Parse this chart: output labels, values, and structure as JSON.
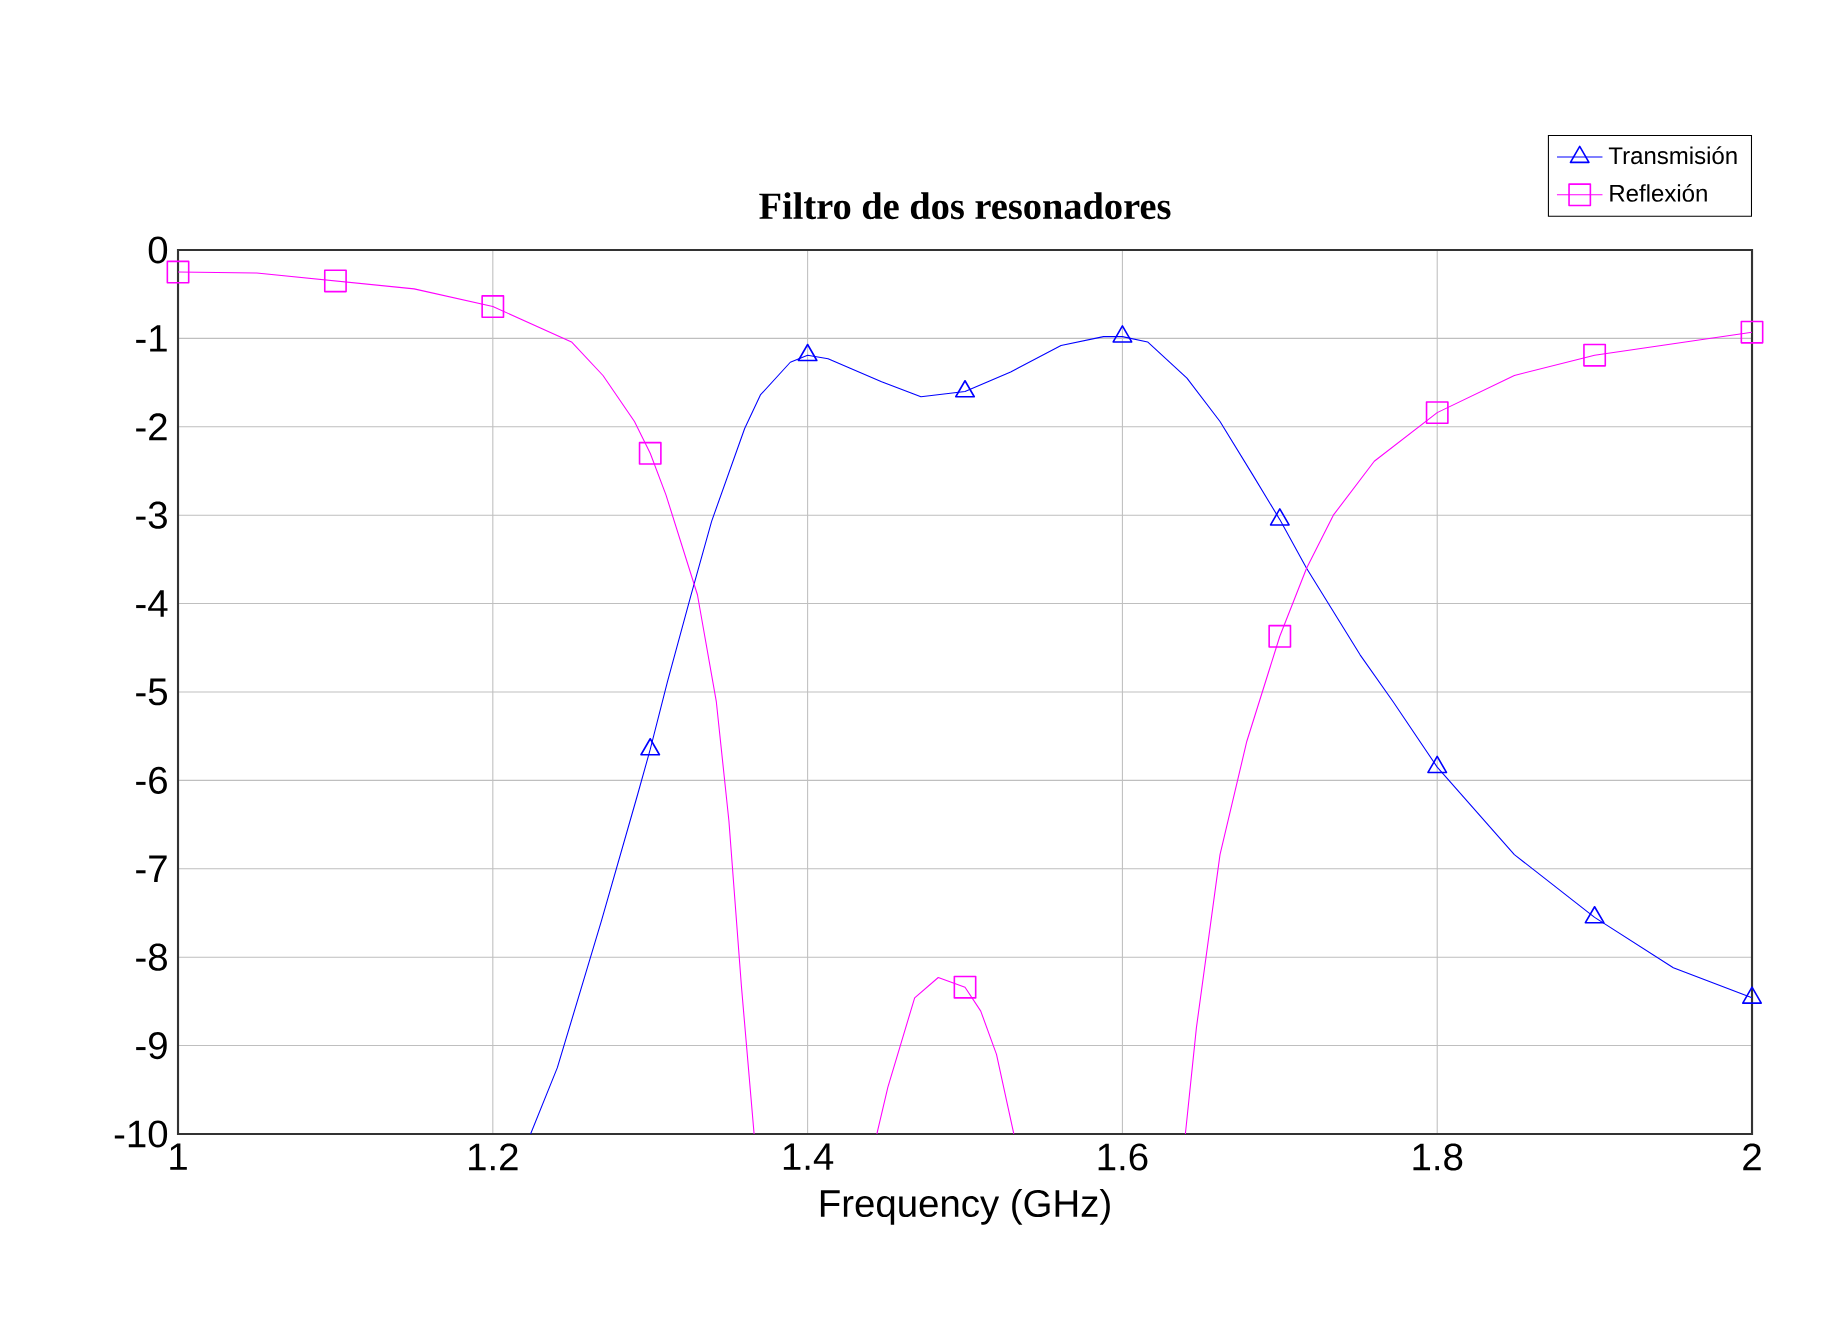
{
  "chart_data": {
    "type": "line",
    "title": "Filtro de dos resonadores",
    "xlabel": "Frequency (GHz)",
    "xlim": [
      1,
      2
    ],
    "ylim": [
      -10,
      0
    ],
    "xticks": [
      1,
      1.2,
      1.4,
      1.6,
      1.8,
      2
    ],
    "yticks": [
      0,
      -1,
      -2,
      -3,
      -4,
      -5,
      -6,
      -7,
      -8,
      -9,
      -10
    ],
    "grid": true,
    "legend": "top right",
    "series": [
      {
        "name": "Transmisión",
        "color": "#0000ff",
        "x": [
          1.224,
          1.241,
          1.269,
          1.292,
          1.3,
          1.311,
          1.326,
          1.339,
          1.36,
          1.37,
          1.389,
          1.4,
          1.413,
          1.447,
          1.472,
          1.5,
          1.529,
          1.561,
          1.588,
          1.6,
          1.616,
          1.641,
          1.662,
          1.683,
          1.7,
          1.717,
          1.751,
          1.772,
          1.8,
          1.849,
          1.9,
          1.95,
          2.0
        ],
        "values": [
          -10,
          -9.25,
          -7.59,
          -6.16,
          -5.65,
          -4.88,
          -3.9,
          -3.07,
          -2.02,
          -1.64,
          -1.27,
          -1.19,
          -1.23,
          -1.49,
          -1.66,
          -1.6,
          -1.38,
          -1.08,
          -0.98,
          -0.98,
          -1.04,
          -1.45,
          -1.94,
          -2.55,
          -3.05,
          -3.6,
          -4.58,
          -5.11,
          -5.85,
          -6.84,
          -7.55,
          -8.12,
          -8.46
        ]
      },
      {
        "type": "scatter",
        "color": "#0000ff",
        "marker": "triangle",
        "x": [
          1.3,
          1.4,
          1.5,
          1.6,
          1.7,
          1.8,
          1.9,
          2.0
        ],
        "values": [
          -5.65,
          -1.19,
          -1.6,
          -0.98,
          -3.05,
          -5.85,
          -7.55,
          -8.46
        ]
      },
      {
        "name": "Reflexión",
        "color": "#ff00ff",
        "x": [
          1.0,
          1.05,
          1.1,
          1.15,
          1.2,
          1.25,
          1.27,
          1.29,
          1.3,
          1.31,
          1.33,
          1.342,
          1.35,
          1.358,
          1.366,
          1.4,
          1.444,
          1.451,
          1.468,
          1.483,
          1.5,
          1.51,
          1.52,
          1.531,
          1.6,
          1.64,
          1.647,
          1.662,
          1.679,
          1.7,
          1.717,
          1.734,
          1.76,
          1.8,
          1.849,
          1.9,
          2.0
        ],
        "values": [
          -0.25,
          -0.26,
          -0.35,
          -0.44,
          -0.64,
          -1.04,
          -1.42,
          -1.94,
          -2.3,
          -2.77,
          -3.9,
          -5.11,
          -6.46,
          -8.34,
          -10,
          null,
          -10,
          -9.47,
          -8.46,
          -8.23,
          -8.34,
          -8.61,
          -9.1,
          -10,
          null,
          -10,
          -8.8,
          -6.84,
          -5.56,
          -4.37,
          -3.6,
          -3.0,
          -2.39,
          -1.84,
          -1.42,
          -1.19,
          -0.93
        ]
      },
      {
        "type": "scatter",
        "color": "#ff00ff",
        "marker": "square",
        "x": [
          1.0,
          1.1,
          1.2,
          1.3,
          1.5,
          1.7,
          1.8,
          1.9,
          2.0
        ],
        "values": [
          -0.25,
          -0.35,
          -0.64,
          -2.3,
          -8.34,
          -4.37,
          -1.84,
          -1.19,
          -0.93
        ]
      }
    ]
  }
}
